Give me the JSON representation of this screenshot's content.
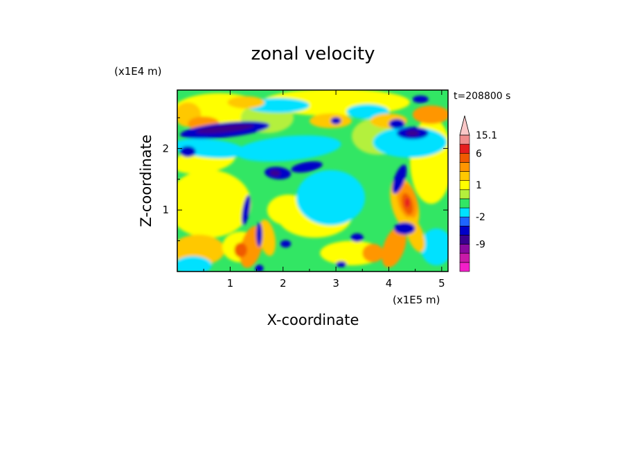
{
  "chart_data": {
    "type": "heatmap",
    "title": "zonal velocity",
    "xlabel": "X-coordinate",
    "ylabel": "Z-coordinate",
    "x_unit": "(x1E5 m)",
    "y_unit": "(x1E4 m)",
    "time_label": "t=208800 s",
    "xlim": [
      0,
      5.12
    ],
    "ylim": [
      0,
      2.95
    ],
    "x_ticks": [
      "1",
      "2",
      "3",
      "4",
      "5"
    ],
    "y_ticks": [
      "1",
      "2"
    ],
    "grid": false,
    "colorbar": {
      "placement": "right",
      "levels": [
        -15,
        -12,
        -9,
        -6,
        -4,
        -2,
        -1,
        0,
        0.5,
        1,
        2,
        4,
        6,
        9,
        12,
        15.1
      ],
      "colors": [
        "#f21fc8",
        "#c81aa8",
        "#8a0aa0",
        "#3a0090",
        "#0000c8",
        "#1e64ff",
        "#00e1ff",
        "#32e664",
        "#b4f03c",
        "#ffff00",
        "#ffc800",
        "#ff9600",
        "#f05a00",
        "#e61e1e",
        "#f08c8c",
        "#fac8c8"
      ],
      "tick_labels": [
        "15.1",
        "6",
        "1",
        "-2",
        "-9"
      ],
      "extend": "max"
    },
    "field_features": [
      {
        "region": "upper layer z 2.2-2.6, x 0-2",
        "value_sign": "negative",
        "description": "strong westward jet band"
      },
      {
        "region": "plume x 1.4-1.7, z 0-1.5",
        "value_sign": "mixed",
        "description": "alternating wave pattern"
      },
      {
        "region": "plume x 4.0-4.6, z 0-2",
        "value_sign": "mixed",
        "description": "strong positive core near z 1.1"
      },
      {
        "region": "middle x 2.5-3.5, z 0.8-1.6",
        "value_sign": "slightly negative",
        "description": "broad weak westward flow"
      }
    ]
  }
}
